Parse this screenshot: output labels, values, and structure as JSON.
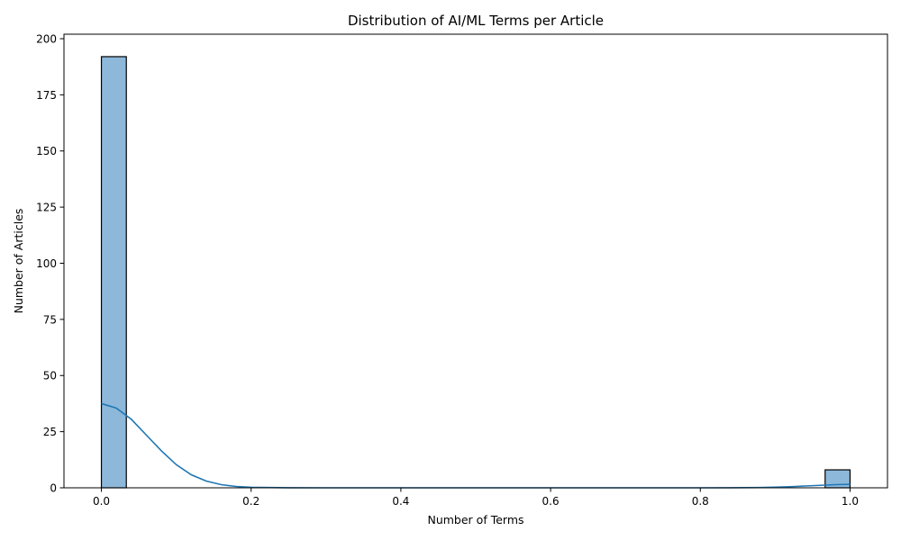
{
  "chart_data": {
    "type": "bar",
    "subtype": "histogram-with-kde",
    "title": "Distribution of AI/ML Terms per Article",
    "xlabel": "Number of Terms",
    "ylabel": "Number of Articles",
    "xlim": [
      -0.05,
      1.05
    ],
    "ylim": [
      0,
      202
    ],
    "x_ticks": [
      0.0,
      0.2,
      0.4,
      0.6,
      0.8,
      1.0
    ],
    "x_tick_labels": [
      "0.0",
      "0.2",
      "0.4",
      "0.6",
      "0.8",
      "1.0"
    ],
    "y_ticks": [
      0,
      25,
      50,
      75,
      100,
      125,
      150,
      175,
      200
    ],
    "y_tick_labels": [
      "0",
      "25",
      "50",
      "75",
      "100",
      "125",
      "150",
      "175",
      "200"
    ],
    "grid": false,
    "bins": [
      {
        "start": 0.0,
        "end": 0.0333,
        "count": 192
      },
      {
        "start": 0.9667,
        "end": 1.0,
        "count": 8
      }
    ],
    "kde": {
      "x": [
        0.0,
        0.02,
        0.04,
        0.06,
        0.08,
        0.1,
        0.12,
        0.14,
        0.16,
        0.18,
        0.2,
        0.25,
        0.3,
        0.4,
        0.5,
        0.6,
        0.7,
        0.8,
        0.84,
        0.88,
        0.9,
        0.92,
        0.94,
        0.96,
        0.98,
        1.0
      ],
      "y": [
        37.5,
        35.5,
        30.5,
        23.5,
        16.5,
        10.3,
        5.8,
        3.0,
        1.4,
        0.6,
        0.22,
        0.02,
        0.0,
        0.0,
        0.0,
        0.0,
        0.0,
        0.0,
        0.02,
        0.12,
        0.27,
        0.5,
        0.8,
        1.1,
        1.4,
        1.55
      ]
    },
    "colors": {
      "bar_fill": "#8db8da",
      "bar_edge": "#000000",
      "kde_line": "#1f77b4"
    }
  }
}
